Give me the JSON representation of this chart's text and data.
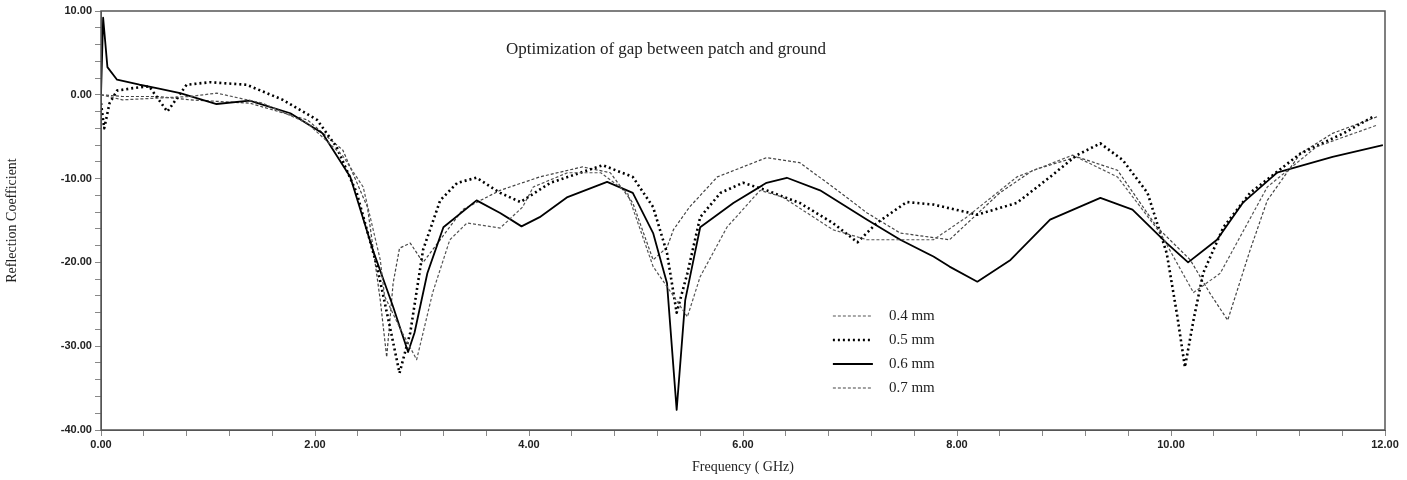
{
  "chart_data": {
    "type": "line",
    "title": "Optimization of gap between patch and ground",
    "xlabel": "Frequency ( GHz)",
    "ylabel": "Reflection Coefficient",
    "xlim": [
      0,
      12
    ],
    "ylim": [
      -40,
      10
    ],
    "xticks": [
      {
        "value": 0,
        "label": "0.00"
      },
      {
        "value": 0.4,
        "label": null
      },
      {
        "value": 0.8,
        "label": null
      },
      {
        "value": 1.2,
        "label": null
      },
      {
        "value": 1.6,
        "label": null
      },
      {
        "value": 2,
        "label": "2.00"
      },
      {
        "value": 2.4,
        "label": null
      },
      {
        "value": 2.8,
        "label": null
      },
      {
        "value": 3.2,
        "label": null
      },
      {
        "value": 3.6,
        "label": null
      },
      {
        "value": 4,
        "label": "4.00"
      },
      {
        "value": 4.4,
        "label": null
      },
      {
        "value": 4.8,
        "label": null
      },
      {
        "value": 5.2,
        "label": null
      },
      {
        "value": 5.6,
        "label": null
      },
      {
        "value": 6,
        "label": "6.00"
      },
      {
        "value": 6.4,
        "label": null
      },
      {
        "value": 6.8,
        "label": null
      },
      {
        "value": 7.2,
        "label": null
      },
      {
        "value": 7.6,
        "label": null
      },
      {
        "value": 8,
        "label": "8.00"
      },
      {
        "value": 8.4,
        "label": null
      },
      {
        "value": 8.8,
        "label": null
      },
      {
        "value": 9.2,
        "label": null
      },
      {
        "value": 9.6,
        "label": null
      },
      {
        "value": 10,
        "label": "10.00"
      },
      {
        "value": 10.4,
        "label": null
      },
      {
        "value": 10.8,
        "label": null
      },
      {
        "value": 11.2,
        "label": null
      },
      {
        "value": 11.6,
        "label": null
      },
      {
        "value": 12,
        "label": "12.00"
      }
    ],
    "yticks": [
      {
        "value": -40,
        "label": "-40.00"
      },
      {
        "value": -38,
        "label": null
      },
      {
        "value": -36,
        "label": null
      },
      {
        "value": -34,
        "label": null
      },
      {
        "value": -32,
        "label": null
      },
      {
        "value": -30,
        "label": "-30.00"
      },
      {
        "value": -28,
        "label": null
      },
      {
        "value": -26,
        "label": null
      },
      {
        "value": -24,
        "label": null
      },
      {
        "value": -22,
        "label": null
      },
      {
        "value": -20,
        "label": "-20.00"
      },
      {
        "value": -18,
        "label": null
      },
      {
        "value": -16,
        "label": null
      },
      {
        "value": -14,
        "label": null
      },
      {
        "value": -12,
        "label": null
      },
      {
        "value": -10,
        "label": "-10.00"
      },
      {
        "value": -8,
        "label": null
      },
      {
        "value": -6,
        "label": null
      },
      {
        "value": -4,
        "label": null
      },
      {
        "value": -2,
        "label": null
      },
      {
        "value": 0,
        "label": "0.00"
      },
      {
        "value": 2,
        "label": null
      },
      {
        "value": 4,
        "label": null
      },
      {
        "value": 6,
        "label": null
      },
      {
        "value": 8,
        "label": null
      },
      {
        "value": 10,
        "label": "10.00"
      }
    ],
    "grid": false,
    "legend": "bottom",
    "marker": "none",
    "series": [
      {
        "name": "0.4 mm",
        "color": "#555555",
        "line_style": "dashed",
        "x": [
          0,
          0.2,
          0.83,
          1.08,
          1.51,
          1.93,
          2.26,
          2.45,
          2.61,
          2.65,
          2.8,
          2.95,
          3.1,
          3.26,
          3.42,
          3.73,
          3.94,
          4.04,
          4.36,
          4.67,
          4.92,
          5.16,
          5.35,
          5.48,
          5.6,
          5.85,
          6.16,
          6.37,
          6.84,
          7.16,
          7.56,
          7.78,
          8.09,
          8.56,
          9.08,
          9.5,
          9.9,
          10.21,
          10.46,
          10.9,
          11.36,
          11.93
        ],
        "values": [
          0,
          -0.6,
          -0.2,
          0.2,
          -1,
          -3.4,
          -7.3,
          -11,
          -19.7,
          -24,
          -28,
          -31.6,
          -23.6,
          -17.3,
          -15.3,
          -15.9,
          -13.4,
          -11,
          -9.3,
          -9.3,
          -11.7,
          -20.5,
          -24,
          -26.5,
          -21.7,
          -15.8,
          -11.4,
          -12.2,
          -16.1,
          -17.3,
          -17.3,
          -17.3,
          -14.6,
          -9.8,
          -7.2,
          -9.8,
          -16.5,
          -23.6,
          -21.3,
          -11,
          -6.2,
          -3.6
        ]
      },
      {
        "name": "0.5 mm",
        "color": "#000000",
        "line_style": "dotted",
        "x": [
          0,
          0.03,
          0.08,
          0.15,
          0.3,
          0.45,
          0.62,
          0.8,
          1.02,
          1.36,
          1.7,
          2.02,
          2.2,
          2.39,
          2.58,
          2.7,
          2.79,
          2.89,
          3.01,
          3.17,
          3.33,
          3.51,
          3.73,
          3.92,
          4.2,
          4.69,
          4.97,
          5.16,
          5.29,
          5.38,
          5.48,
          5.6,
          5.79,
          6,
          6.22,
          6.53,
          6.84,
          7.07,
          7.25,
          7.53,
          7.78,
          8.19,
          8.56,
          8.87,
          9.12,
          9.34,
          9.55,
          9.78,
          9.96,
          10.06,
          10.13,
          10.21,
          10.3,
          10.49,
          10.74,
          11.21,
          11.61,
          11.89
        ],
        "values": [
          -1,
          -4,
          -1,
          0.5,
          0.8,
          1,
          -2,
          1.2,
          1.5,
          1.2,
          -0.6,
          -3,
          -6.2,
          -11.7,
          -20.5,
          -27.7,
          -33.2,
          -28.4,
          -18.5,
          -12.6,
          -10.5,
          -9.9,
          -11.7,
          -12.8,
          -10.5,
          -8.4,
          -9.8,
          -13.4,
          -18.9,
          -26,
          -21.3,
          -14.6,
          -11.7,
          -10.5,
          -11.4,
          -12.9,
          -15.3,
          -17.6,
          -15.3,
          -12.8,
          -13.1,
          -14.3,
          -12.9,
          -9.8,
          -7.2,
          -5.8,
          -7.8,
          -11.7,
          -18.9,
          -26.5,
          -32.5,
          -26.9,
          -21.3,
          -15.8,
          -11.7,
          -7,
          -4.6,
          -2.6
        ]
      },
      {
        "name": "0.6 mm",
        "color": "#000000",
        "line_style": "solid",
        "x": [
          0,
          0.02,
          0.06,
          0.15,
          0.36,
          0.52,
          0.74,
          1.08,
          1.39,
          1.77,
          2.07,
          2.33,
          2.54,
          2.73,
          2.87,
          2.93,
          3.05,
          3.2,
          3.51,
          3.73,
          3.93,
          4.1,
          4.36,
          4.73,
          4.97,
          5.16,
          5.29,
          5.38,
          5.46,
          5.6,
          5.91,
          6.22,
          6.41,
          6.72,
          7.16,
          7.47,
          7.78,
          7.93,
          8.19,
          8.5,
          8.87,
          9.34,
          9.64,
          9.96,
          10.16,
          10.43,
          10.67,
          10.99,
          11.51,
          11.98
        ],
        "values": [
          0,
          9.2,
          3.3,
          1.8,
          1.2,
          0.8,
          0.2,
          -1.1,
          -0.7,
          -2.2,
          -4.6,
          -9.8,
          -18.5,
          -25.3,
          -30.7,
          -28.4,
          -21.3,
          -15.8,
          -12.6,
          -14.1,
          -15.7,
          -14.6,
          -12.2,
          -10.4,
          -11.7,
          -16.5,
          -22.5,
          -37.6,
          -24.5,
          -15.8,
          -12.9,
          -10.5,
          -9.9,
          -11.4,
          -14.9,
          -17.3,
          -19.3,
          -20.5,
          -22.3,
          -19.7,
          -14.9,
          -12.3,
          -13.7,
          -17.7,
          -20,
          -17.3,
          -12.9,
          -9.3,
          -7.4,
          -6
        ]
      },
      {
        "name": "0.7 mm",
        "color": "#444444",
        "line_style": "dashed",
        "x": [
          0,
          0.2,
          0.52,
          0.83,
          1.39,
          1.93,
          2.26,
          2.49,
          2.61,
          2.67,
          2.73,
          2.79,
          2.89,
          3.01,
          3.17,
          3.38,
          3.73,
          4.1,
          4.5,
          4.76,
          4.97,
          5.16,
          5.29,
          5.35,
          5.5,
          5.76,
          6.22,
          6.53,
          6.84,
          7.16,
          7.47,
          7.93,
          8.4,
          8.71,
          9.12,
          9.5,
          9.87,
          10.18,
          10.36,
          10.53,
          10.74,
          10.9,
          11.21,
          11.51,
          11.93
        ],
        "values": [
          0,
          -0.2,
          -0.2,
          -0.6,
          -1,
          -3,
          -6.6,
          -13.4,
          -24.5,
          -31.3,
          -22.5,
          -18.3,
          -17.7,
          -20,
          -17.3,
          -13.7,
          -11.4,
          -9.8,
          -8.6,
          -9.3,
          -12.9,
          -19.7,
          -18.2,
          -16.1,
          -13.4,
          -9.8,
          -7.5,
          -8.1,
          -11,
          -14.1,
          -16.5,
          -17.3,
          -11.7,
          -9,
          -7.4,
          -9,
          -15.8,
          -19.7,
          -23.6,
          -26.9,
          -18.5,
          -12.6,
          -7,
          -4.6,
          -2.6
        ]
      }
    ]
  }
}
